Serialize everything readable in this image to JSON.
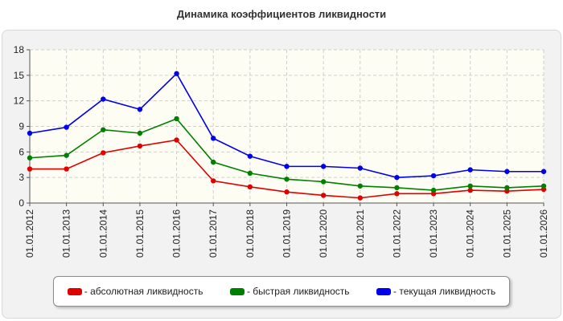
{
  "chart_data": {
    "type": "line",
    "title": "Динамика коэффициентов ликвидности",
    "categories": [
      "01.01.2012",
      "01.01.2013",
      "01.01.2014",
      "01.01.2015",
      "01.01.2016",
      "01.01.2017",
      "01.01.2018",
      "01.01.2019",
      "01.01.2020",
      "01.01.2021",
      "01.01.2022",
      "01.01.2023",
      "01.01.2024",
      "01.01.2025",
      "01.01.2026"
    ],
    "ylim": [
      0,
      18
    ],
    "yticks": [
      0,
      3,
      6,
      9,
      12,
      15,
      18
    ],
    "grid": true,
    "legend_position": "bottom",
    "series": [
      {
        "name": "- абсолютная ликвидность",
        "color": "#e00000",
        "values": [
          4.0,
          4.0,
          5.9,
          6.7,
          7.4,
          2.6,
          1.9,
          1.3,
          0.9,
          0.6,
          1.1,
          1.1,
          1.5,
          1.4,
          1.6
        ]
      },
      {
        "name": "- быстрая ликвидность",
        "color": "#008000",
        "values": [
          5.3,
          5.6,
          8.6,
          8.2,
          9.9,
          4.8,
          3.5,
          2.8,
          2.5,
          2.0,
          1.8,
          1.5,
          2.0,
          1.8,
          2.0
        ]
      },
      {
        "name": "- текущая ликвидность",
        "color": "#0000ee",
        "values": [
          8.2,
          8.9,
          12.2,
          11.0,
          15.2,
          7.6,
          5.5,
          4.3,
          4.3,
          4.1,
          3.0,
          3.2,
          3.9,
          3.7,
          3.7
        ]
      }
    ]
  }
}
